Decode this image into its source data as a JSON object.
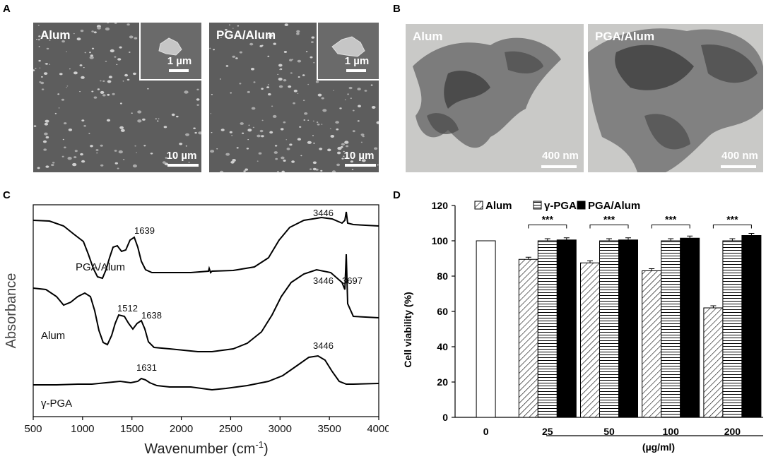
{
  "panels": {
    "A": {
      "label": "A",
      "images": [
        {
          "title": "Alum",
          "inset_scale": "1 µm",
          "scale": "10 µm"
        },
        {
          "title": "PGA/Alum",
          "inset_scale": "1 µm",
          "scale": "10 µm"
        }
      ]
    },
    "B": {
      "label": "B",
      "images": [
        {
          "title": "Alum",
          "scale": "400 nm"
        },
        {
          "title": "PGA/Alum",
          "scale": "400 nm"
        }
      ]
    },
    "C": {
      "label": "C",
      "xlabel": "Wavenumber (cm",
      "xlabel_sup": "-1",
      "xlabel_end": ")",
      "ylabel": "Absorbance",
      "xticks": [
        "500",
        "1000",
        "1500",
        "2000",
        "2500",
        "3000",
        "3500",
        "4000"
      ],
      "traces": [
        {
          "name": "PGA/Alum",
          "peaks": [
            "1639",
            "3446"
          ]
        },
        {
          "name": "Alum",
          "peaks": [
            "1512",
            "1638",
            "3446",
            "3697"
          ]
        },
        {
          "name": "γ-PGA",
          "peaks": [
            "1631",
            "3446"
          ]
        }
      ]
    },
    "D": {
      "label": "D",
      "xlabel": "(µg/ml)",
      "significance": "***"
    }
  },
  "chart_data": [
    {
      "type": "line",
      "xlabel": "Wavenumber (cm-1)",
      "ylabel": "Absorbance",
      "xlim": [
        500,
        4000
      ],
      "series": [
        {
          "name": "PGA/Alum",
          "peaks": [
            1639,
            3446
          ]
        },
        {
          "name": "Alum",
          "peaks": [
            1512,
            1638,
            3446,
            3697
          ]
        },
        {
          "name": "γ-PGA",
          "peaks": [
            1631,
            3446
          ]
        }
      ]
    },
    {
      "type": "bar",
      "ylabel": "Cell viability (%)",
      "xlabel": "(µg/ml)",
      "ylim": [
        0,
        120
      ],
      "yticks": [
        "0",
        "20",
        "40",
        "60",
        "80",
        "100",
        "120"
      ],
      "categories": [
        "0",
        "25",
        "50",
        "100",
        "200"
      ],
      "control": {
        "category": "0",
        "value": 100
      },
      "series": [
        {
          "name": "Alum",
          "values": [
            null,
            89.5,
            87.5,
            83,
            62
          ]
        },
        {
          "name": "γ-PGA",
          "values": [
            null,
            100,
            100,
            100,
            100
          ]
        },
        {
          "name": "PGA/Alum",
          "values": [
            null,
            100.5,
            100.5,
            101.5,
            103
          ]
        }
      ]
    }
  ]
}
